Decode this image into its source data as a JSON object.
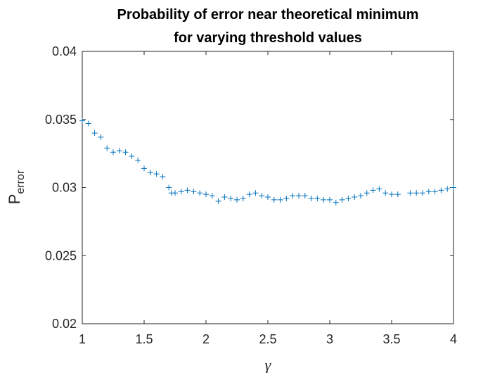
{
  "chart_data": {
    "type": "scatter",
    "title": [
      "Probability of error near theoretical minimum",
      "for varying threshold values"
    ],
    "x_label": "γ",
    "y_label": {
      "main": "P",
      "subscript": "error"
    },
    "marker": "+",
    "color": "#0072bd",
    "xlim": [
      1,
      4
    ],
    "xticks": [
      1,
      1.5,
      2,
      2.5,
      3,
      3.5,
      4
    ],
    "ylim": [
      0.02,
      0.04
    ],
    "yticks": [
      0.02,
      0.025,
      0.03,
      0.035,
      0.04
    ],
    "x": [
      1.0,
      1.05,
      1.1,
      1.15,
      1.2,
      1.25,
      1.3,
      1.35,
      1.4,
      1.45,
      1.5,
      1.55,
      1.6,
      1.65,
      1.7,
      1.72,
      1.75,
      1.8,
      1.85,
      1.9,
      1.95,
      2.0,
      2.05,
      2.1,
      2.15,
      2.2,
      2.25,
      2.3,
      2.35,
      2.4,
      2.45,
      2.5,
      2.55,
      2.6,
      2.65,
      2.7,
      2.75,
      2.8,
      2.85,
      2.9,
      2.95,
      3.0,
      3.05,
      3.1,
      3.15,
      3.2,
      3.25,
      3.3,
      3.35,
      3.4,
      3.45,
      3.5,
      3.55,
      3.65,
      3.7,
      3.75,
      3.8,
      3.85,
      3.9,
      3.95,
      4.0
    ],
    "values": [
      0.0349,
      0.0347,
      0.034,
      0.0337,
      0.0329,
      0.0326,
      0.0327,
      0.0326,
      0.0323,
      0.032,
      0.0314,
      0.0311,
      0.031,
      0.0308,
      0.03,
      0.0296,
      0.0296,
      0.0297,
      0.0298,
      0.0297,
      0.0296,
      0.0295,
      0.0294,
      0.029,
      0.0293,
      0.0292,
      0.0291,
      0.0292,
      0.0295,
      0.0296,
      0.0294,
      0.0293,
      0.0291,
      0.0291,
      0.0292,
      0.0294,
      0.0294,
      0.0294,
      0.0292,
      0.0292,
      0.0291,
      0.0291,
      0.0289,
      0.0291,
      0.0292,
      0.0293,
      0.0294,
      0.0296,
      0.0298,
      0.0299,
      0.0296,
      0.0295,
      0.0295,
      0.0296,
      0.0296,
      0.0296,
      0.0297,
      0.0297,
      0.0298,
      0.0299,
      0.03
    ]
  }
}
